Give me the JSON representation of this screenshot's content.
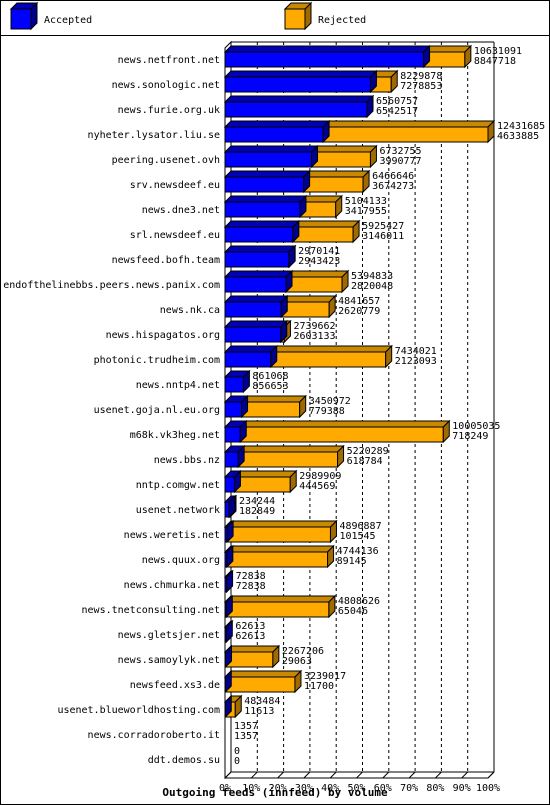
{
  "chart_data": {
    "type": "bar",
    "orientation": "horizontal",
    "stacked": true,
    "title": "Outgoing feeds (innfeed) by volume",
    "xlim": [
      0,
      100
    ],
    "x_ticks": [
      "0%",
      "10%",
      "20%",
      "30%",
      "40%",
      "50%",
      "60%",
      "70%",
      "80%",
      "90%",
      "100%"
    ],
    "grid": true,
    "legend_position": "top",
    "colors": {
      "accepted": "#0000ff",
      "rejected": "#ffaa00"
    },
    "series": [
      {
        "name": "Accepted",
        "key": "accepted"
      },
      {
        "name": "Rejected",
        "key": "rejected"
      }
    ],
    "rows": [
      {
        "category": "news.netfront.net",
        "total_pct": 91.2,
        "accepted_pct": 75.5,
        "label1": "10631091",
        "label2": "8847718"
      },
      {
        "category": "news.sonologic.net",
        "total_pct": 63.2,
        "accepted_pct": 55.3,
        "label1": "8229878",
        "label2": "7278853"
      },
      {
        "category": "news.furie.org.uk",
        "total_pct": 54.0,
        "accepted_pct": 54.0,
        "label1": "6560757",
        "label2": "6542517"
      },
      {
        "category": "nyheter.lysator.liu.se",
        "total_pct": 100.0,
        "accepted_pct": 37.3,
        "label1": "12431685",
        "label2": "4633885"
      },
      {
        "category": "peering.usenet.ovh",
        "total_pct": 55.3,
        "accepted_pct": 32.9,
        "label1": "6732755",
        "label2": "3990777"
      },
      {
        "category": "srv.newsdeef.eu",
        "total_pct": 52.5,
        "accepted_pct": 29.9,
        "label1": "6466646",
        "label2": "3674273"
      },
      {
        "category": "news.dne3.net",
        "total_pct": 42.1,
        "accepted_pct": 28.5,
        "label1": "5104133",
        "label2": "3417955"
      },
      {
        "category": "srl.newsdeef.eu",
        "total_pct": 48.7,
        "accepted_pct": 25.8,
        "label1": "5925427",
        "label2": "3146011"
      },
      {
        "category": "newsfeed.bofh.team",
        "total_pct": 24.4,
        "accepted_pct": 24.3,
        "label1": "2970141",
        "label2": "2943423"
      },
      {
        "category": "endofthelinebbs.peers.news.panix.com",
        "total_pct": 44.5,
        "accepted_pct": 23.2,
        "label1": "5394833",
        "label2": "2820048"
      },
      {
        "category": "news.nk.ca",
        "total_pct": 39.6,
        "accepted_pct": 21.4,
        "label1": "4841657",
        "label2": "2620779"
      },
      {
        "category": "news.hispagatos.org",
        "total_pct": 22.6,
        "accepted_pct": 21.2,
        "label1": "2739662",
        "label2": "2603133"
      },
      {
        "category": "photonic.trudheim.com",
        "total_pct": 61.1,
        "accepted_pct": 17.4,
        "label1": "7434021",
        "label2": "2123093"
      },
      {
        "category": "news.nntp4.net",
        "total_pct": 7.0,
        "accepted_pct": 7.0,
        "label1": "861068",
        "label2": "856653"
      },
      {
        "category": "usenet.goja.nl.eu.org",
        "total_pct": 28.4,
        "accepted_pct": 6.3,
        "label1": "3450972",
        "label2": "779388"
      },
      {
        "category": "m68k.vk3heg.net",
        "total_pct": 83.0,
        "accepted_pct": 5.8,
        "label1": "10005035",
        "label2": "718249"
      },
      {
        "category": "news.bbs.nz",
        "total_pct": 42.8,
        "accepted_pct": 5.0,
        "label1": "5220289",
        "label2": "618784"
      },
      {
        "category": "nntp.comgw.net",
        "total_pct": 24.8,
        "accepted_pct": 3.6,
        "label1": "2989909",
        "label2": "444569"
      },
      {
        "category": "usenet.network",
        "total_pct": 1.9,
        "accepted_pct": 1.5,
        "label1": "234244",
        "label2": "182849"
      },
      {
        "category": "news.weretis.net",
        "total_pct": 40.1,
        "accepted_pct": 0.8,
        "label1": "4896887",
        "label2": "101545"
      },
      {
        "category": "news.quux.org",
        "total_pct": 39.0,
        "accepted_pct": 0.7,
        "label1": "4744136",
        "label2": "89145"
      },
      {
        "category": "news.chmurka.net",
        "total_pct": 0.6,
        "accepted_pct": 0.6,
        "label1": "72838",
        "label2": "72838"
      },
      {
        "category": "news.tnetconsulting.net",
        "total_pct": 39.5,
        "accepted_pct": 0.5,
        "label1": "4808626",
        "label2": "65046"
      },
      {
        "category": "news.gletsjer.net",
        "total_pct": 0.5,
        "accepted_pct": 0.5,
        "label1": "62613",
        "label2": "62613"
      },
      {
        "category": "news.samoylyk.net",
        "total_pct": 18.2,
        "accepted_pct": 0.2,
        "label1": "2267206",
        "label2": "29063"
      },
      {
        "category": "newsfeed.xs3.de",
        "total_pct": 26.6,
        "accepted_pct": 0.1,
        "label1": "3239017",
        "label2": "11700"
      },
      {
        "category": "usenet.blueworldhosting.com",
        "total_pct": 3.9,
        "accepted_pct": 0.1,
        "label1": "483484",
        "label2": "11613"
      },
      {
        "category": "news.corradoroberto.it",
        "total_pct": 0.0,
        "accepted_pct": 0.0,
        "label1": "1357",
        "label2": "1357"
      },
      {
        "category": "ddt.demos.su",
        "total_pct": 0.0,
        "accepted_pct": 0.0,
        "label1": "0",
        "label2": "0"
      }
    ]
  }
}
